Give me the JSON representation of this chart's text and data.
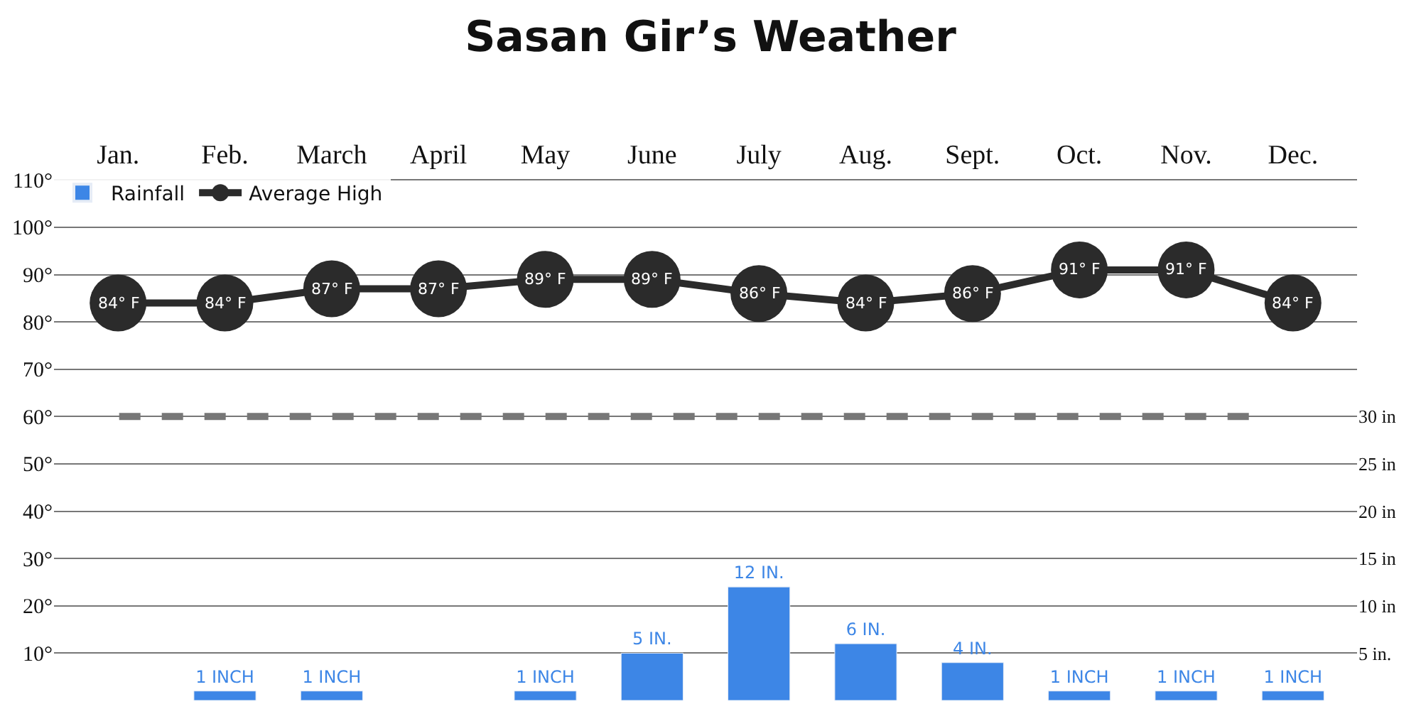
{
  "chart_data": {
    "type": "line",
    "title": "Sasan Gir’s Weather",
    "categories": [
      "Jan.",
      "Feb.",
      "March",
      "April",
      "May",
      "June",
      "July",
      "Aug.",
      "Sept.",
      "Oct.",
      "Nov.",
      "Dec."
    ],
    "series": [
      {
        "name": "Average High",
        "color": "#2b2b2b",
        "marker": "circle",
        "values": [
          84,
          84,
          87,
          87,
          89,
          89,
          86,
          84,
          86,
          91,
          91,
          84
        ],
        "value_labels": [
          "84° F",
          "84° F",
          "87° F",
          "87° F",
          "89° F",
          "89° F",
          "86° F",
          "84° F",
          "86° F",
          "91° F",
          "91° F",
          "84° F"
        ]
      },
      {
        "name": "Rainfall",
        "type": "bar",
        "axis": "y2",
        "color": "#3d86e6",
        "values": [
          null,
          1,
          1,
          null,
          1,
          5,
          12,
          6,
          4,
          1,
          1,
          1
        ],
        "value_labels": [
          null,
          "1 INCH",
          "1 INCH",
          null,
          "1 INCH",
          "5 IN.",
          "12 IN.",
          "6 IN.",
          "4 IN.",
          "1 INCH",
          "1 INCH",
          "1 INCH"
        ]
      }
    ],
    "ylim": [
      0,
      112
    ],
    "yticks": [
      {
        "value": 10,
        "label": "10°"
      },
      {
        "value": 20,
        "label": "20°"
      },
      {
        "value": 30,
        "label": "30°"
      },
      {
        "value": 40,
        "label": "40°"
      },
      {
        "value": 50,
        "label": "50°"
      },
      {
        "value": 60,
        "label": "60°"
      },
      {
        "value": 70,
        "label": "70°"
      },
      {
        "value": 80,
        "label": "80°"
      },
      {
        "value": 90,
        "label": "90°"
      },
      {
        "value": 100,
        "label": "100°"
      },
      {
        "value": 110,
        "label": "110°"
      }
    ],
    "y2lim": [
      0,
      56
    ],
    "y2ticks": [
      {
        "value": 5,
        "label": "5 in."
      },
      {
        "value": 10,
        "label": "10 in"
      },
      {
        "value": 15,
        "label": "15 in"
      },
      {
        "value": 20,
        "label": "20 in"
      },
      {
        "value": 25,
        "label": "25 in"
      },
      {
        "value": 30,
        "label": "30 in"
      }
    ],
    "ref_lines": [
      {
        "axis": "y",
        "value": 60,
        "color": "#777777",
        "line_style": "dashed"
      }
    ],
    "grid": "y",
    "legend": "top left"
  }
}
